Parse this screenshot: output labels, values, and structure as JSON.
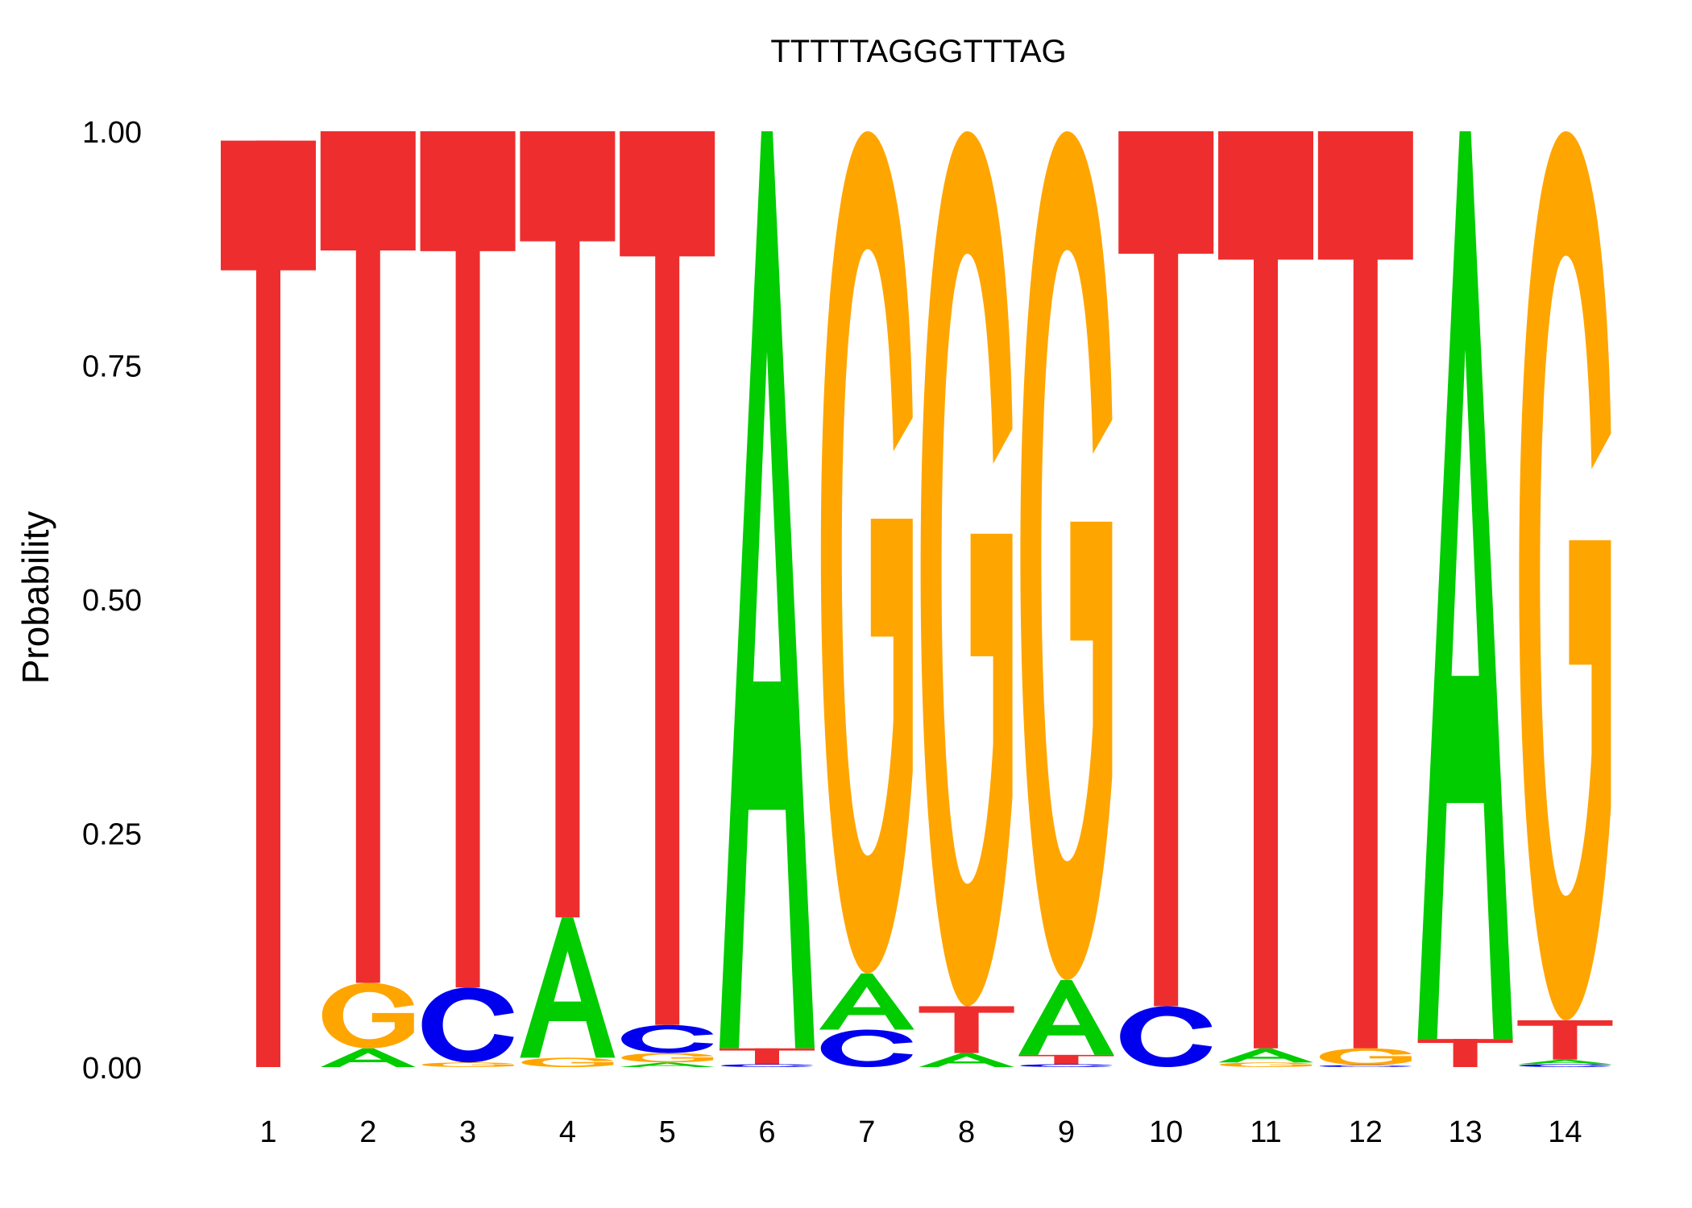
{
  "chart_data": {
    "type": "sequence-logo",
    "title": "TTTTTAGGGTTTAG",
    "ylabel": "Probability",
    "xlabel": "",
    "ylim": [
      0,
      1
    ],
    "yticks": [
      "0.00",
      "0.25",
      "0.50",
      "0.75",
      "1.00"
    ],
    "positions": [
      "1",
      "2",
      "3",
      "4",
      "5",
      "6",
      "7",
      "8",
      "9",
      "10",
      "11",
      "12",
      "13",
      "14"
    ],
    "colors": {
      "A": "#00cc00",
      "C": "#0000ee",
      "G": "#ffa500",
      "T": "#ee2e2e"
    },
    "stacks": [
      [
        {
          "letter": "T",
          "p": 0.99
        }
      ],
      [
        {
          "letter": "A",
          "p": 0.02
        },
        {
          "letter": "G",
          "p": 0.07
        },
        {
          "letter": "T",
          "p": 0.91
        }
      ],
      [
        {
          "letter": "G",
          "p": 0.005
        },
        {
          "letter": "C",
          "p": 0.08
        },
        {
          "letter": "T",
          "p": 0.915
        }
      ],
      [
        {
          "letter": "G",
          "p": 0.01
        },
        {
          "letter": "A",
          "p": 0.15
        },
        {
          "letter": "T",
          "p": 0.84
        }
      ],
      [
        {
          "letter": "A",
          "p": 0.005
        },
        {
          "letter": "G",
          "p": 0.01
        },
        {
          "letter": "C",
          "p": 0.03
        },
        {
          "letter": "T",
          "p": 0.955
        }
      ],
      [
        {
          "letter": "C",
          "p": 0.003
        },
        {
          "letter": "T",
          "p": 0.017
        },
        {
          "letter": "A",
          "p": 0.98
        }
      ],
      [
        {
          "letter": "C",
          "p": 0.04
        },
        {
          "letter": "A",
          "p": 0.06
        },
        {
          "letter": "G",
          "p": 0.9
        }
      ],
      [
        {
          "letter": "A",
          "p": 0.015
        },
        {
          "letter": "T",
          "p": 0.05
        },
        {
          "letter": "G",
          "p": 0.935
        }
      ],
      [
        {
          "letter": "C",
          "p": 0.003
        },
        {
          "letter": "T",
          "p": 0.01
        },
        {
          "letter": "A",
          "p": 0.08
        },
        {
          "letter": "G",
          "p": 0.907
        }
      ],
      [
        {
          "letter": "C",
          "p": 0.065
        },
        {
          "letter": "T",
          "p": 0.935
        }
      ],
      [
        {
          "letter": "G",
          "p": 0.005
        },
        {
          "letter": "A",
          "p": 0.015
        },
        {
          "letter": "T",
          "p": 0.98
        }
      ],
      [
        {
          "letter": "C",
          "p": 0.002
        },
        {
          "letter": "G",
          "p": 0.018
        },
        {
          "letter": "T",
          "p": 0.98
        }
      ],
      [
        {
          "letter": "T",
          "p": 0.03
        },
        {
          "letter": "A",
          "p": 0.97
        }
      ],
      [
        {
          "letter": "C",
          "p": 0.003
        },
        {
          "letter": "A",
          "p": 0.005
        },
        {
          "letter": "T",
          "p": 0.042
        },
        {
          "letter": "G",
          "p": 0.95
        }
      ]
    ]
  }
}
